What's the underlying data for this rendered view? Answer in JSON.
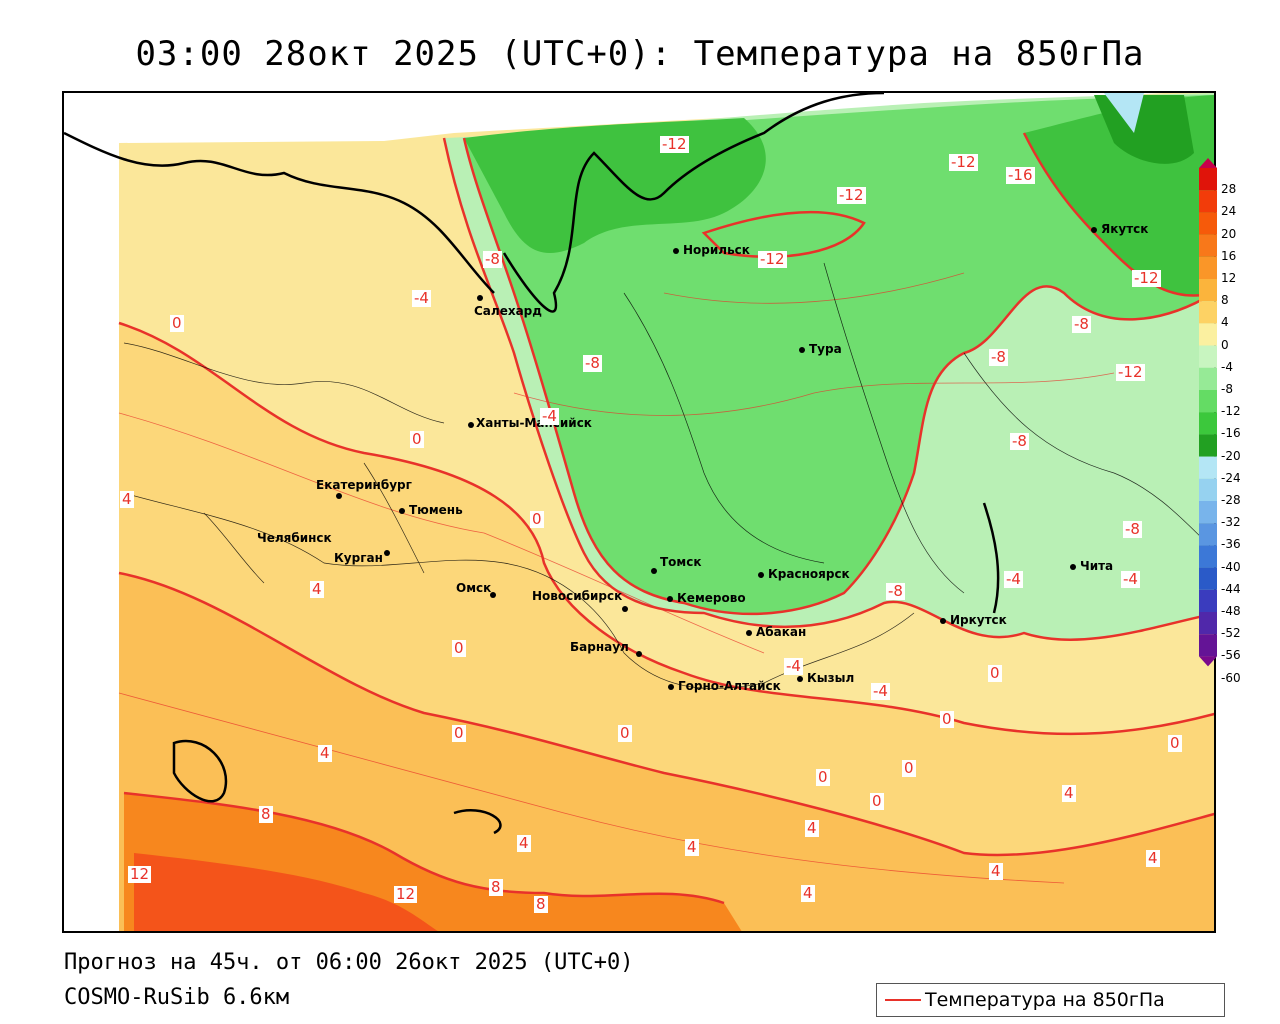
{
  "title": "03:00 28окт 2025 (UTC+0): Температура на 850гПа",
  "footer": {
    "forecast": "Прогноз на 45ч. от 06:00 26окт 2025 (UTC+0)",
    "model": "COSMO-RuSib 6.6км"
  },
  "legend": {
    "label": "Температура на 850гПа",
    "color": "#e8322a"
  },
  "cities": [
    {
      "name": "Норильск"
    },
    {
      "name": "Якутск"
    },
    {
      "name": "Салехард"
    },
    {
      "name": "Тура"
    },
    {
      "name": "Ханты-Мансийск"
    },
    {
      "name": "Екатеринбург"
    },
    {
      "name": "Тюмень"
    },
    {
      "name": "Челябинск"
    },
    {
      "name": "Курган"
    },
    {
      "name": "Омск"
    },
    {
      "name": "Томск"
    },
    {
      "name": "Красноярск"
    },
    {
      "name": "Новосибирск"
    },
    {
      "name": "Кемерово"
    },
    {
      "name": "Абакан"
    },
    {
      "name": "Иркутск"
    },
    {
      "name": "Барнаул"
    },
    {
      "name": "Кызыл"
    },
    {
      "name": "Горно-Алтайск"
    },
    {
      "name": "Чита"
    }
  ],
  "contour_labels": [
    "-12",
    "-12",
    "-12",
    "-16",
    "-12",
    "-12",
    "-12",
    "-8",
    "-4",
    "-8",
    "-8",
    "-8",
    "-12",
    "-8",
    "-8",
    "-4",
    "0",
    "-4",
    "0",
    "4",
    "0",
    "-8",
    "-4",
    "-4",
    "-4",
    "-8",
    "0",
    "0",
    "0",
    "0",
    "0",
    "0",
    "0",
    "0",
    "0",
    "4",
    "4",
    "8",
    "4",
    "4",
    "4",
    "4",
    "4",
    "12",
    "12",
    "8",
    "8",
    "4",
    "4"
  ],
  "scale": {
    "ticks": [
      "28",
      "24",
      "20",
      "16",
      "12",
      "8",
      "4",
      "0",
      "-4",
      "-8",
      "-12",
      "-16",
      "-20",
      "-24",
      "-28",
      "-32",
      "-36",
      "-40",
      "-44",
      "-48",
      "-52",
      "-56",
      "-60"
    ],
    "colors": [
      "#c8004b",
      "#e0140a",
      "#f23c0a",
      "#f65a0a",
      "#f8781a",
      "#fa9628",
      "#fbb43c",
      "#fdd264",
      "#fbf0a0",
      "#c8f5c0",
      "#96ea96",
      "#64dc64",
      "#3cc83c",
      "#22a022",
      "#b4e6f5",
      "#96d2f0",
      "#78b4eb",
      "#5a96e1",
      "#3c78d7",
      "#2a5ac8",
      "#3a3cbe",
      "#5028aa",
      "#641496",
      "#7a0a8c"
    ]
  }
}
